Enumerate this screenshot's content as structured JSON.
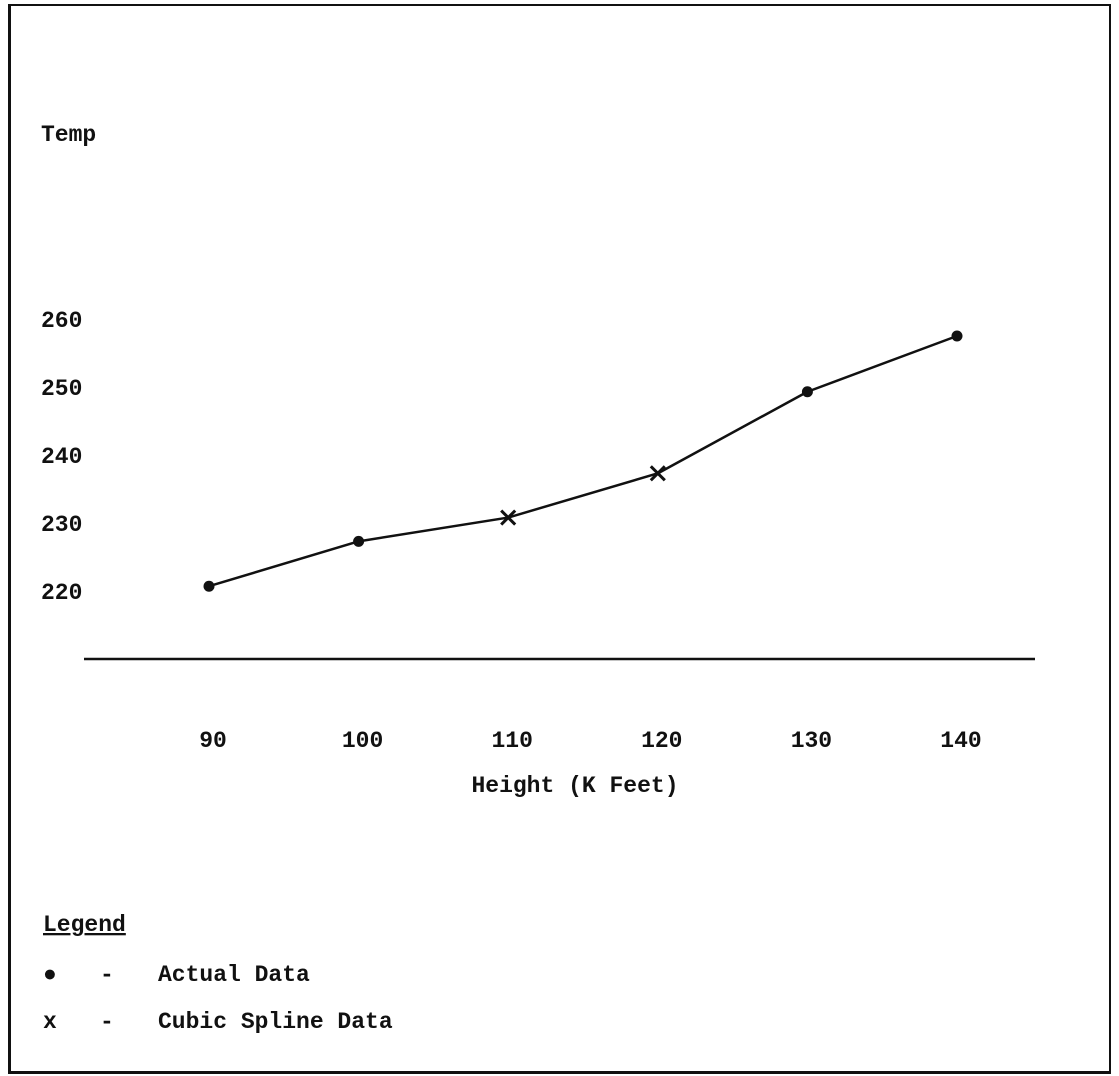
{
  "chart_data": {
    "type": "line",
    "xlabel": "Height (K Feet)",
    "ylabel": "Temp",
    "x_ticks": [
      "90",
      "100",
      "110",
      "120",
      "130",
      "140"
    ],
    "y_ticks": [
      "220",
      "230",
      "240",
      "250",
      "260"
    ],
    "xlim": [
      80,
      145
    ],
    "ylim": [
      215,
      265
    ],
    "grid": false,
    "series": [
      {
        "points": [
          {
            "x": 90,
            "y": 220.7,
            "marker": "dot"
          },
          {
            "x": 100,
            "y": 227.3,
            "marker": "dot"
          },
          {
            "x": 110,
            "y": 230.8,
            "marker": "x"
          },
          {
            "x": 120,
            "y": 237.3,
            "marker": "x"
          },
          {
            "x": 130,
            "y": 249.3,
            "marker": "dot"
          },
          {
            "x": 140,
            "y": 257.5,
            "marker": "dot"
          }
        ]
      }
    ],
    "legend": {
      "title": "Legend",
      "placement": "bottom-left",
      "entries": [
        {
          "symbol": "●",
          "dash": "-",
          "label": "Actual Data"
        },
        {
          "symbol": "x",
          "dash": "-",
          "label": "Cubic Spline Data"
        }
      ]
    }
  }
}
